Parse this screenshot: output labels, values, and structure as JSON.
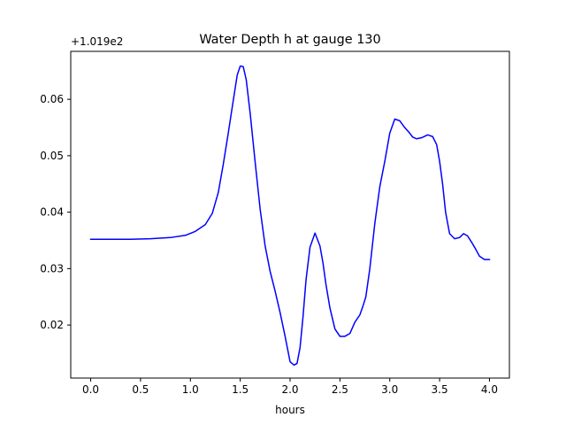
{
  "chart_data": {
    "type": "line",
    "title": "Water Depth h at gauge 130",
    "xlabel": "hours",
    "ylabel": "",
    "y_offset_label": "+1.019e2",
    "xlim": [
      -0.2,
      4.2
    ],
    "ylim": [
      0.0106,
      0.0685
    ],
    "x_ticks": [
      0.0,
      0.5,
      1.0,
      1.5,
      2.0,
      2.5,
      3.0,
      3.5,
      4.0
    ],
    "x_tick_labels": [
      "0.0",
      "0.5",
      "1.0",
      "1.5",
      "2.0",
      "2.5",
      "3.0",
      "3.5",
      "4.0"
    ],
    "y_ticks": [
      0.02,
      0.03,
      0.04,
      0.05,
      0.06
    ],
    "y_tick_labels": [
      "0.02",
      "0.03",
      "0.04",
      "0.05",
      "0.06"
    ],
    "grid": false,
    "line_color": "#0000ff",
    "series": [
      {
        "x": [
          0.0,
          0.2,
          0.4,
          0.6,
          0.8,
          0.95,
          1.05,
          1.15,
          1.22,
          1.28,
          1.33,
          1.38,
          1.43,
          1.47,
          1.5,
          1.53,
          1.56,
          1.6,
          1.65,
          1.7,
          1.75,
          1.8,
          1.85,
          1.9,
          1.95,
          2.0,
          2.04,
          2.07,
          2.1,
          2.13,
          2.16,
          2.2,
          2.25,
          2.3,
          2.33,
          2.36,
          2.4,
          2.45,
          2.5,
          2.55,
          2.6,
          2.65,
          2.7,
          2.73,
          2.76,
          2.8,
          2.85,
          2.9,
          2.95,
          3.0,
          3.05,
          3.1,
          3.15,
          3.2,
          3.23,
          3.27,
          3.32,
          3.38,
          3.43,
          3.47,
          3.5,
          3.53,
          3.56,
          3.6,
          3.65,
          3.7,
          3.74,
          3.78,
          3.82,
          3.86,
          3.9,
          3.95,
          4.0
        ],
        "y": [
          0.0352,
          0.0352,
          0.0352,
          0.0353,
          0.0355,
          0.0359,
          0.0366,
          0.0378,
          0.0398,
          0.0435,
          0.0485,
          0.054,
          0.0598,
          0.0643,
          0.0659,
          0.0658,
          0.0635,
          0.0575,
          0.0488,
          0.0405,
          0.034,
          0.0295,
          0.026,
          0.0222,
          0.018,
          0.0135,
          0.0129,
          0.0132,
          0.016,
          0.0215,
          0.028,
          0.0338,
          0.0363,
          0.034,
          0.031,
          0.0272,
          0.023,
          0.0193,
          0.018,
          0.018,
          0.0185,
          0.0205,
          0.0218,
          0.0233,
          0.025,
          0.03,
          0.038,
          0.0445,
          0.049,
          0.054,
          0.0565,
          0.0562,
          0.055,
          0.054,
          0.0533,
          0.053,
          0.0532,
          0.0537,
          0.0534,
          0.052,
          0.049,
          0.045,
          0.04,
          0.0362,
          0.0353,
          0.0355,
          0.0362,
          0.0358,
          0.0347,
          0.0335,
          0.0322,
          0.0316,
          0.0316
        ]
      }
    ]
  }
}
